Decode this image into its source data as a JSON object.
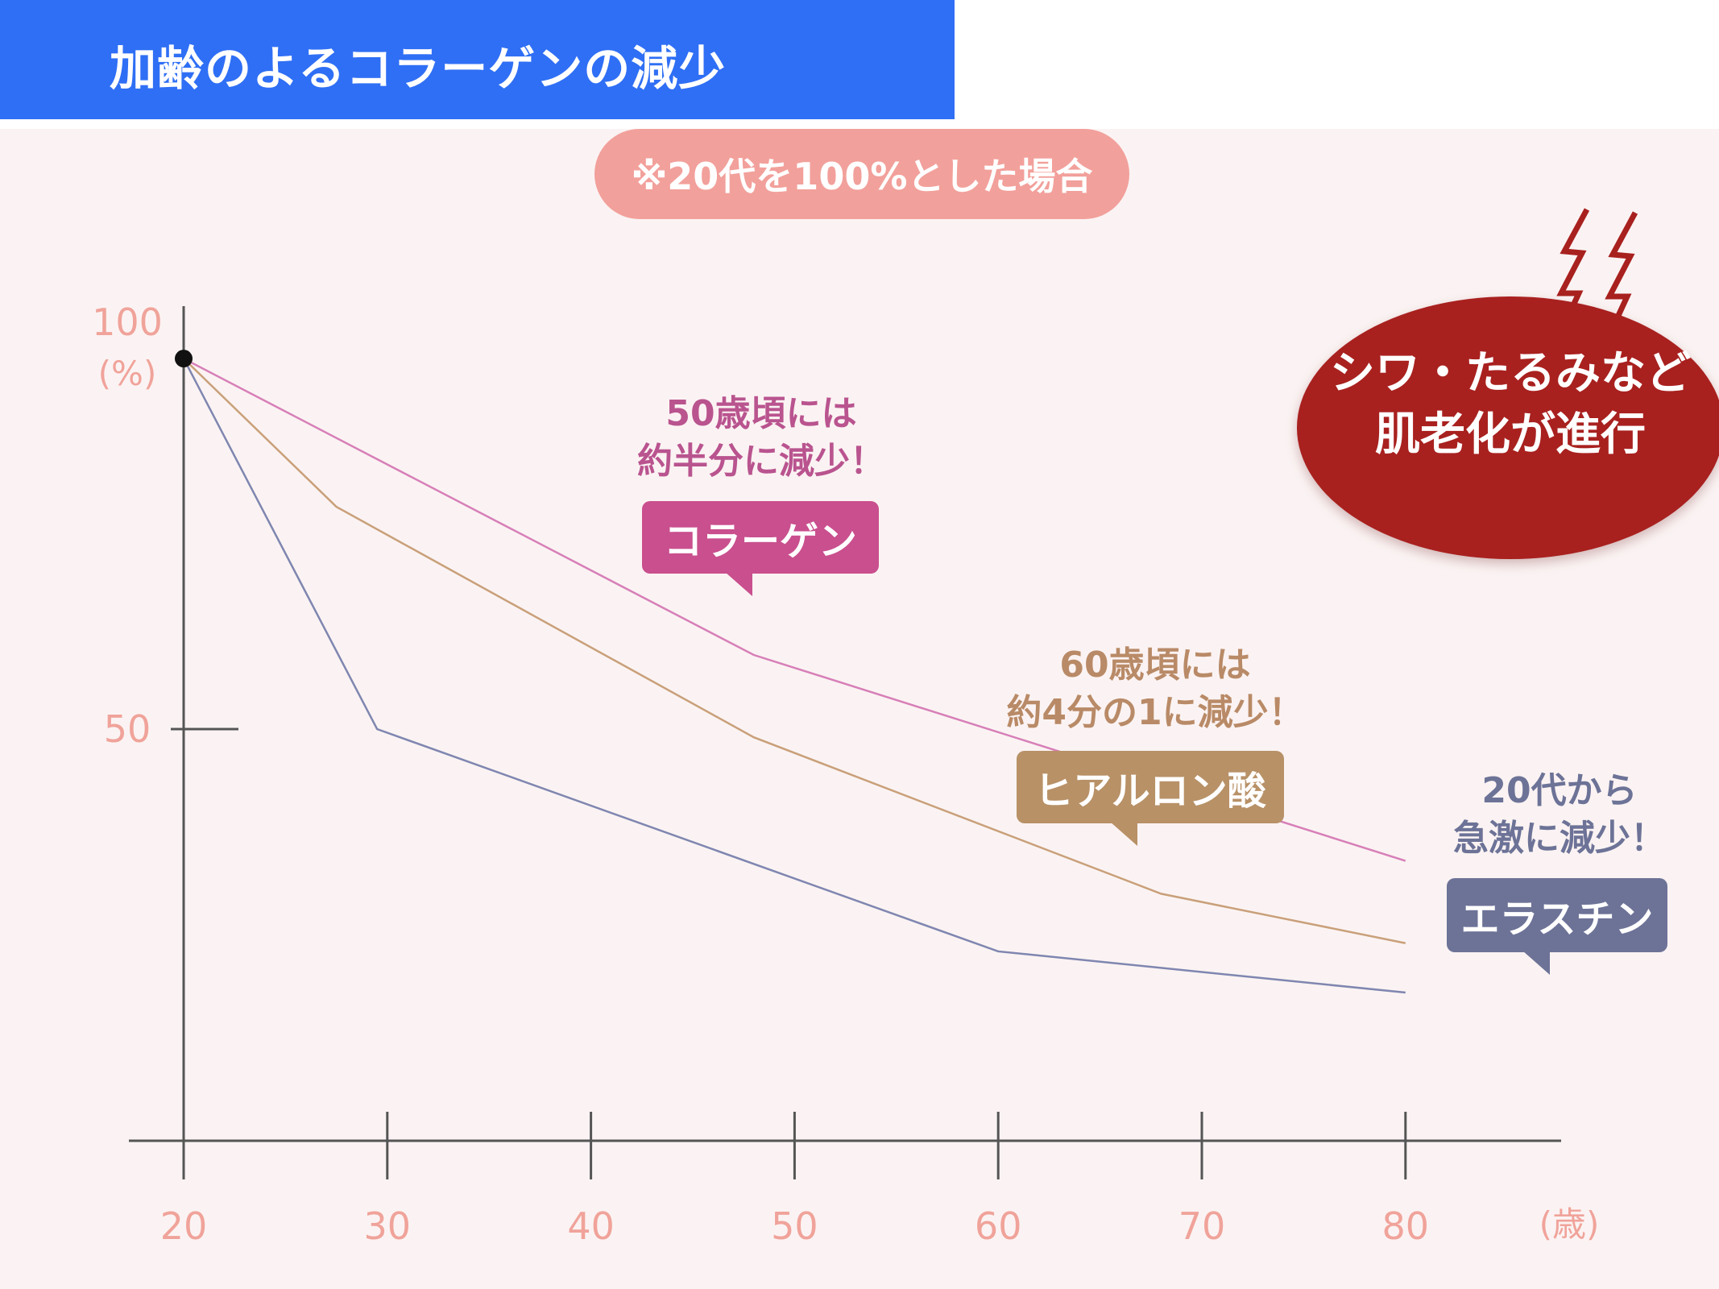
{
  "header": {
    "title": "加齢のよるコラーゲンの減少"
  },
  "note": {
    "text": "※20代を100%とした場合"
  },
  "warning": {
    "line1": "シワ・たるみなど",
    "line2": "肌老化が進行"
  },
  "callouts": {
    "collagen": {
      "line1": "50歳頃には",
      "line2": "約半分に減少！",
      "tag": "コラーゲン"
    },
    "hyaluronic": {
      "line1": "60歳頃には",
      "line2": "約4分の1に減少！",
      "tag": "ヒアルロン酸"
    },
    "elastin": {
      "line1": "20代から",
      "line2": "急激に減少！",
      "tag": "エラスチン"
    }
  },
  "colors": {
    "header": "#2f6ff5",
    "axis": "#555555",
    "tick_label": "#f0a39a",
    "collagen": "#d77fb8",
    "hyaluronic": "#c9a07a",
    "elastin": "#7f86b0",
    "collagen_tag": "#c94f8e",
    "hyaluronic_tag": "#b89167",
    "elastin_tag": "#6d7397",
    "warning": "#a8211f"
  },
  "chart_data": {
    "type": "line",
    "title": "",
    "xlabel": "(歳)",
    "ylabel": "(%)",
    "xlim": [
      20,
      87
    ],
    "ylim": [
      0,
      100
    ],
    "x_ticks": [
      "20",
      "30",
      "40",
      "50",
      "60",
      "70",
      "80"
    ],
    "y_ticks": [
      "100",
      "50"
    ],
    "series": [
      {
        "name": "コラーゲン",
        "x": [
          20,
          48,
          80
        ],
        "y": [
          95,
          59,
          34
        ]
      },
      {
        "name": "ヒアルロン酸",
        "x": [
          20,
          27.5,
          48,
          68,
          80
        ],
        "y": [
          95,
          77,
          49,
          30,
          24
        ]
      },
      {
        "name": "エラスチン",
        "x": [
          20,
          29.5,
          60,
          80
        ],
        "y": [
          95,
          50,
          23,
          18
        ]
      }
    ],
    "start_point": {
      "x": 20,
      "y": 95
    },
    "grid": false,
    "legend": "none"
  }
}
